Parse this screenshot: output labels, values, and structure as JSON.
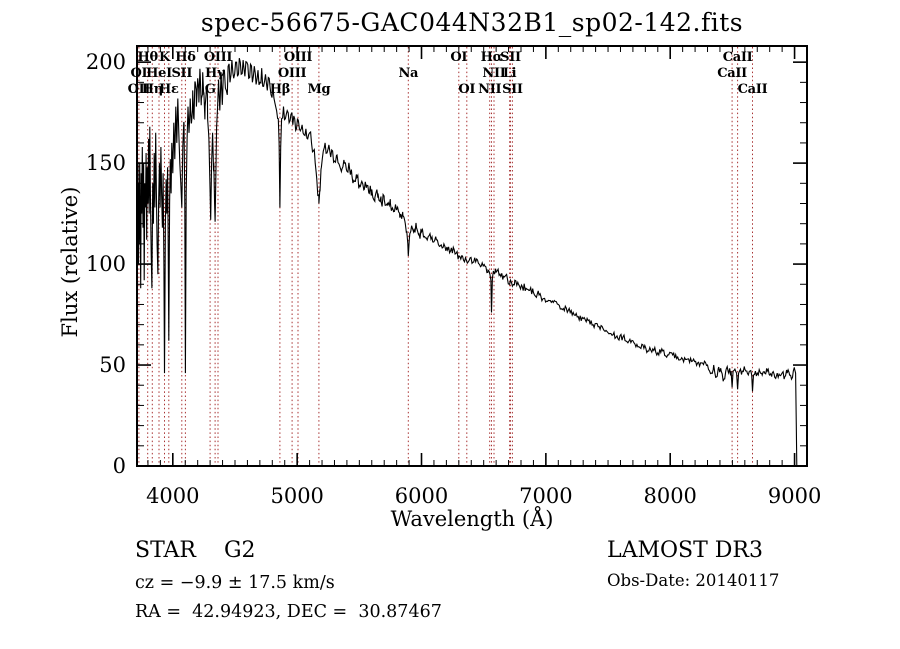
{
  "annotations": {
    "object_class": "STAR    G2",
    "cz": "cz = −9.9 ± 17.5 km/s",
    "ra_dec": "RA =  42.94923, DEC =  30.87467",
    "survey": "LAMOST DR3",
    "obs_date": "Obs-Date: 20140117"
  },
  "chart_data": {
    "type": "line",
    "title": "spec-56675-GAC044N32B1_sp02-142.fits",
    "xlabel": "Wavelength (Å)",
    "ylabel": "Flux (relative)",
    "xlim": [
      3712,
      9100
    ],
    "ylim": [
      0,
      208
    ],
    "xticks": {
      "major": [
        4000,
        5000,
        6000,
        7000,
        8000,
        9000
      ],
      "minor_step": 100
    },
    "yticks": {
      "major": [
        0,
        50,
        100,
        150,
        200
      ],
      "minor_step": 10
    },
    "grid": false,
    "legend": "none",
    "spectrum_color": "#000000",
    "line_marker_color": "#a83232",
    "spectral_lines": [
      {
        "label": "Hθ",
        "wavelength": 3798,
        "row": 1
      },
      {
        "label": "K",
        "wavelength": 3933,
        "row": 1
      },
      {
        "label": "Hδ",
        "wavelength": 4101,
        "row": 1
      },
      {
        "label": "OIII",
        "wavelength": 4363,
        "row": 1
      },
      {
        "label": "OIII",
        "wavelength": 5007,
        "row": 1
      },
      {
        "label": "OI",
        "wavelength": 6300,
        "row": 1
      },
      {
        "label": "Hα",
        "wavelength": 6563,
        "row": 1
      },
      {
        "label": "SII",
        "wavelength": 6716,
        "row": 1
      },
      {
        "label": "CaII",
        "wavelength": 8542,
        "row": 1
      },
      {
        "label": "OI",
        "wavelength": 3727,
        "row": 2
      },
      {
        "label": "HeI",
        "wavelength": 3889,
        "row": 2
      },
      {
        "label": "SII",
        "wavelength": 4072,
        "row": 2
      },
      {
        "label": "Hγ",
        "wavelength": 4340,
        "row": 2
      },
      {
        "label": "OIII",
        "wavelength": 4959,
        "row": 2
      },
      {
        "label": "Na",
        "wavelength": 5894,
        "row": 2
      },
      {
        "label": "NII",
        "wavelength": 6583,
        "row": 2
      },
      {
        "label": "Li",
        "wavelength": 6708,
        "row": 2
      },
      {
        "label": "CaII",
        "wavelength": 8498,
        "row": 2
      },
      {
        "label": "OII",
        "wavelength": 3727,
        "row": 3
      },
      {
        "label": "Hη",
        "wavelength": 3835,
        "row": 3
      },
      {
        "label": "Hε",
        "wavelength": 3968,
        "row": 3
      },
      {
        "label": "G",
        "wavelength": 4300,
        "row": 3
      },
      {
        "label": "Hβ",
        "wavelength": 4861,
        "row": 3
      },
      {
        "label": "Mg",
        "wavelength": 5175,
        "row": 3
      },
      {
        "label": "OI",
        "wavelength": 6364,
        "row": 3
      },
      {
        "label": "NII",
        "wavelength": 6548,
        "row": 3
      },
      {
        "label": "SII",
        "wavelength": 6731,
        "row": 3
      },
      {
        "label": "CaII",
        "wavelength": 8662,
        "row": 3
      }
    ],
    "spectrum": {
      "seed": 11,
      "sample_step_angstrom": 8,
      "noise_bands": [
        [
          3712,
          4005,
          20
        ],
        [
          4005,
          4460,
          9
        ],
        [
          4460,
          5200,
          4.5
        ],
        [
          5200,
          6000,
          3
        ],
        [
          6000,
          7000,
          2
        ],
        [
          7000,
          8300,
          1.6
        ],
        [
          8300,
          9020,
          2.2
        ]
      ],
      "control_points": [
        [
          3712,
          40
        ],
        [
          3714,
          160
        ],
        [
          3716,
          120
        ],
        [
          3720,
          150
        ],
        [
          3724,
          100
        ],
        [
          3727,
          140
        ],
        [
          3730,
          110
        ],
        [
          3734,
          150
        ],
        [
          3738,
          122
        ],
        [
          3742,
          88
        ],
        [
          3746,
          145
        ],
        [
          3750,
          125
        ],
        [
          3755,
          158
        ],
        [
          3760,
          118
        ],
        [
          3765,
          150
        ],
        [
          3770,
          92
        ],
        [
          3775,
          140
        ],
        [
          3780,
          128
        ],
        [
          3785,
          155
        ],
        [
          3790,
          112
        ],
        [
          3795,
          148
        ],
        [
          3800,
          130
        ],
        [
          3805,
          162
        ],
        [
          3810,
          125
        ],
        [
          3815,
          168
        ],
        [
          3820,
          135
        ],
        [
          3826,
          105
        ],
        [
          3832,
          88
        ],
        [
          3838,
          140
        ],
        [
          3844,
          120
        ],
        [
          3850,
          155
        ],
        [
          3856,
          128
        ],
        [
          3862,
          165
        ],
        [
          3868,
          135
        ],
        [
          3874,
          110
        ],
        [
          3880,
          95
        ],
        [
          3886,
          130
        ],
        [
          3892,
          150
        ],
        [
          3898,
          128
        ],
        [
          3904,
          158
        ],
        [
          3910,
          135
        ],
        [
          3916,
          118
        ],
        [
          3922,
          145
        ],
        [
          3928,
          100
        ],
        [
          3933,
          46
        ],
        [
          3940,
          120
        ],
        [
          3946,
          142
        ],
        [
          3952,
          125
        ],
        [
          3958,
          148
        ],
        [
          3963,
          110
        ],
        [
          3968,
          62
        ],
        [
          3974,
          130
        ],
        [
          3980,
          152
        ],
        [
          3986,
          135
        ],
        [
          3992,
          160
        ],
        [
          4000,
          145
        ],
        [
          4008,
          170
        ],
        [
          4016,
          152
        ],
        [
          4024,
          178
        ],
        [
          4032,
          160
        ],
        [
          4040,
          182
        ],
        [
          4048,
          165
        ],
        [
          4056,
          150
        ],
        [
          4064,
          140
        ],
        [
          4072,
          128
        ],
        [
          4080,
          158
        ],
        [
          4090,
          170
        ],
        [
          4096,
          130
        ],
        [
          4101,
          46
        ],
        [
          4108,
          135
        ],
        [
          4115,
          162
        ],
        [
          4122,
          178
        ],
        [
          4130,
          165
        ],
        [
          4140,
          182
        ],
        [
          4150,
          170
        ],
        [
          4160,
          186
        ],
        [
          4170,
          172
        ],
        [
          4180,
          190
        ],
        [
          4190,
          178
        ],
        [
          4200,
          192
        ],
        [
          4210,
          180
        ],
        [
          4220,
          194
        ],
        [
          4230,
          182
        ],
        [
          4240,
          195
        ],
        [
          4250,
          185
        ],
        [
          4260,
          178
        ],
        [
          4270,
          188
        ],
        [
          4280,
          172
        ],
        [
          4290,
          162
        ],
        [
          4298,
          140
        ],
        [
          4305,
          122
        ],
        [
          4312,
          150
        ],
        [
          4320,
          165
        ],
        [
          4330,
          150
        ],
        [
          4336,
          130
        ],
        [
          4340,
          121
        ],
        [
          4346,
          142
        ],
        [
          4352,
          168
        ],
        [
          4360,
          178
        ],
        [
          4370,
          188
        ],
        [
          4380,
          180
        ],
        [
          4390,
          192
        ],
        [
          4400,
          183
        ],
        [
          4415,
          196
        ],
        [
          4430,
          186
        ],
        [
          4445,
          198
        ],
        [
          4460,
          190
        ],
        [
          4475,
          201
        ],
        [
          4490,
          192
        ],
        [
          4505,
          200
        ],
        [
          4520,
          193
        ],
        [
          4535,
          202
        ],
        [
          4550,
          194
        ],
        [
          4565,
          201
        ],
        [
          4580,
          193
        ],
        [
          4595,
          200
        ],
        [
          4610,
          192
        ],
        [
          4625,
          199
        ],
        [
          4640,
          190
        ],
        [
          4655,
          198
        ],
        [
          4670,
          189
        ],
        [
          4685,
          196
        ],
        [
          4700,
          190
        ],
        [
          4715,
          197
        ],
        [
          4730,
          188
        ],
        [
          4745,
          194
        ],
        [
          4760,
          186
        ],
        [
          4775,
          192
        ],
        [
          4790,
          184
        ],
        [
          4805,
          188
        ],
        [
          4820,
          180
        ],
        [
          4835,
          176
        ],
        [
          4848,
          172
        ],
        [
          4855,
          160
        ],
        [
          4861,
          128
        ],
        [
          4868,
          158
        ],
        [
          4875,
          172
        ],
        [
          4890,
          178
        ],
        [
          4905,
          172
        ],
        [
          4920,
          176
        ],
        [
          4935,
          170
        ],
        [
          4950,
          174
        ],
        [
          4965,
          169
        ],
        [
          4980,
          172
        ],
        [
          4995,
          167
        ],
        [
          5010,
          171
        ],
        [
          5025,
          166
        ],
        [
          5040,
          169
        ],
        [
          5055,
          164
        ],
        [
          5070,
          167
        ],
        [
          5085,
          162
        ],
        [
          5100,
          165
        ],
        [
          5115,
          160
        ],
        [
          5130,
          156
        ],
        [
          5145,
          150
        ],
        [
          5158,
          142
        ],
        [
          5166,
          134
        ],
        [
          5175,
          130
        ],
        [
          5184,
          136
        ],
        [
          5195,
          148
        ],
        [
          5210,
          156
        ],
        [
          5225,
          160
        ],
        [
          5240,
          155
        ],
        [
          5255,
          159
        ],
        [
          5270,
          153
        ],
        [
          5285,
          156
        ],
        [
          5300,
          151
        ],
        [
          5320,
          154
        ],
        [
          5340,
          149
        ],
        [
          5360,
          147
        ],
        [
          5380,
          150
        ],
        [
          5400,
          146
        ],
        [
          5420,
          148
        ],
        [
          5440,
          144
        ],
        [
          5460,
          141
        ],
        [
          5480,
          143
        ],
        [
          5500,
          139
        ],
        [
          5520,
          141
        ],
        [
          5540,
          137
        ],
        [
          5560,
          139
        ],
        [
          5580,
          135
        ],
        [
          5600,
          137
        ],
        [
          5625,
          133
        ],
        [
          5650,
          135
        ],
        [
          5675,
          131
        ],
        [
          5700,
          132
        ],
        [
          5725,
          129
        ],
        [
          5750,
          130
        ],
        [
          5775,
          126
        ],
        [
          5800,
          127
        ],
        [
          5825,
          123
        ],
        [
          5850,
          124
        ],
        [
          5870,
          120
        ],
        [
          5882,
          116
        ],
        [
          5894,
          104
        ],
        [
          5906,
          115
        ],
        [
          5920,
          119
        ],
        [
          5940,
          117
        ],
        [
          5960,
          118
        ],
        [
          5980,
          115
        ],
        [
          6000,
          116
        ],
        [
          6030,
          113
        ],
        [
          6060,
          114
        ],
        [
          6090,
          111
        ],
        [
          6120,
          112
        ],
        [
          6150,
          109
        ],
        [
          6180,
          110
        ],
        [
          6210,
          107
        ],
        [
          6240,
          108
        ],
        [
          6270,
          105
        ],
        [
          6300,
          104
        ],
        [
          6330,
          104
        ],
        [
          6360,
          102
        ],
        [
          6390,
          103
        ],
        [
          6420,
          101
        ],
        [
          6450,
          102
        ],
        [
          6480,
          99
        ],
        [
          6510,
          99
        ],
        [
          6535,
          97
        ],
        [
          6550,
          95
        ],
        [
          6558,
          92
        ],
        [
          6563,
          76
        ],
        [
          6570,
          93
        ],
        [
          6580,
          96
        ],
        [
          6600,
          96
        ],
        [
          6630,
          95
        ],
        [
          6660,
          94
        ],
        [
          6690,
          93
        ],
        [
          6708,
          90
        ],
        [
          6716,
          92
        ],
        [
          6731,
          89
        ],
        [
          6750,
          92
        ],
        [
          6780,
          90
        ],
        [
          6810,
          89
        ],
        [
          6840,
          88
        ],
        [
          6870,
          87
        ],
        [
          6900,
          86
        ],
        [
          6930,
          85
        ],
        [
          6960,
          84
        ],
        [
          6990,
          83
        ],
        [
          7020,
          82
        ],
        [
          7060,
          81
        ],
        [
          7100,
          80
        ],
        [
          7140,
          78
        ],
        [
          7180,
          77
        ],
        [
          7220,
          76
        ],
        [
          7260,
          74
        ],
        [
          7300,
          73
        ],
        [
          7340,
          72
        ],
        [
          7380,
          70
        ],
        [
          7420,
          69
        ],
        [
          7460,
          68
        ],
        [
          7500,
          66
        ],
        [
          7540,
          65
        ],
        [
          7580,
          63
        ],
        [
          7620,
          64
        ],
        [
          7660,
          61
        ],
        [
          7700,
          62
        ],
        [
          7740,
          59
        ],
        [
          7780,
          60
        ],
        [
          7820,
          57
        ],
        [
          7860,
          58
        ],
        [
          7900,
          56
        ],
        [
          7940,
          57
        ],
        [
          7980,
          55
        ],
        [
          8020,
          55
        ],
        [
          8060,
          54
        ],
        [
          8100,
          53
        ],
        [
          8140,
          53
        ],
        [
          8180,
          52
        ],
        [
          8220,
          51
        ],
        [
          8260,
          51
        ],
        [
          8300,
          50
        ],
        [
          8330,
          46
        ],
        [
          8350,
          50
        ],
        [
          8370,
          44
        ],
        [
          8390,
          49
        ],
        [
          8410,
          47
        ],
        [
          8430,
          43
        ],
        [
          8450,
          48
        ],
        [
          8470,
          46
        ],
        [
          8490,
          47
        ],
        [
          8498,
          39
        ],
        [
          8506,
          47
        ],
        [
          8520,
          48
        ],
        [
          8534,
          46
        ],
        [
          8542,
          38
        ],
        [
          8550,
          46
        ],
        [
          8565,
          48
        ],
        [
          8580,
          47
        ],
        [
          8600,
          48
        ],
        [
          8620,
          46
        ],
        [
          8640,
          47
        ],
        [
          8655,
          45
        ],
        [
          8662,
          37
        ],
        [
          8670,
          45
        ],
        [
          8685,
          47
        ],
        [
          8700,
          46
        ],
        [
          8720,
          47
        ],
        [
          8740,
          45
        ],
        [
          8760,
          46
        ],
        [
          8780,
          47
        ],
        [
          8800,
          45
        ],
        [
          8820,
          46
        ],
        [
          8840,
          44
        ],
        [
          8860,
          46
        ],
        [
          8880,
          45
        ],
        [
          8900,
          46
        ],
        [
          8920,
          44
        ],
        [
          8940,
          46
        ],
        [
          8960,
          45
        ],
        [
          8975,
          43
        ],
        [
          8990,
          47
        ],
        [
          9000,
          48
        ],
        [
          9008,
          46
        ],
        [
          9014,
          20
        ],
        [
          9018,
          0
        ]
      ]
    }
  }
}
